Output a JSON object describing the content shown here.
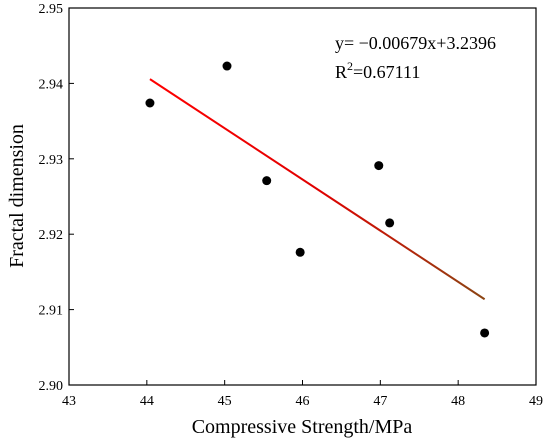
{
  "chart_data": {
    "type": "scatter",
    "xlabel": "Compressive Strength/MPa",
    "ylabel": "Fractal dimension",
    "xlim": [
      43,
      49
    ],
    "ylim": [
      2.9,
      2.95
    ],
    "x_ticks": [
      "43",
      "44",
      "45",
      "46",
      "47",
      "48",
      "49"
    ],
    "y_ticks": [
      "2.90",
      "2.91",
      "2.92",
      "2.93",
      "2.94",
      "2.95"
    ],
    "grid": false,
    "series": [
      {
        "points": [
          {
            "x": 44.04,
            "y": 2.9374
          },
          {
            "x": 45.03,
            "y": 2.9423
          },
          {
            "x": 45.54,
            "y": 2.9271
          },
          {
            "x": 45.97,
            "y": 2.9176
          },
          {
            "x": 46.98,
            "y": 2.9291
          },
          {
            "x": 47.12,
            "y": 2.9215
          },
          {
            "x": 48.34,
            "y": 2.9069
          }
        ],
        "color": "#000000"
      }
    ],
    "fit": {
      "slope": -0.00679,
      "intercept": 3.2396,
      "x_range": [
        44.04,
        48.34
      ],
      "color_start": "#ff0000",
      "color_end": "#8b4513"
    },
    "annotations": {
      "equation": "y= −0.00679x+3.2396",
      "r2_prefix": "R",
      "r2_sup": "2",
      "r2_value": "=0.67111"
    }
  }
}
